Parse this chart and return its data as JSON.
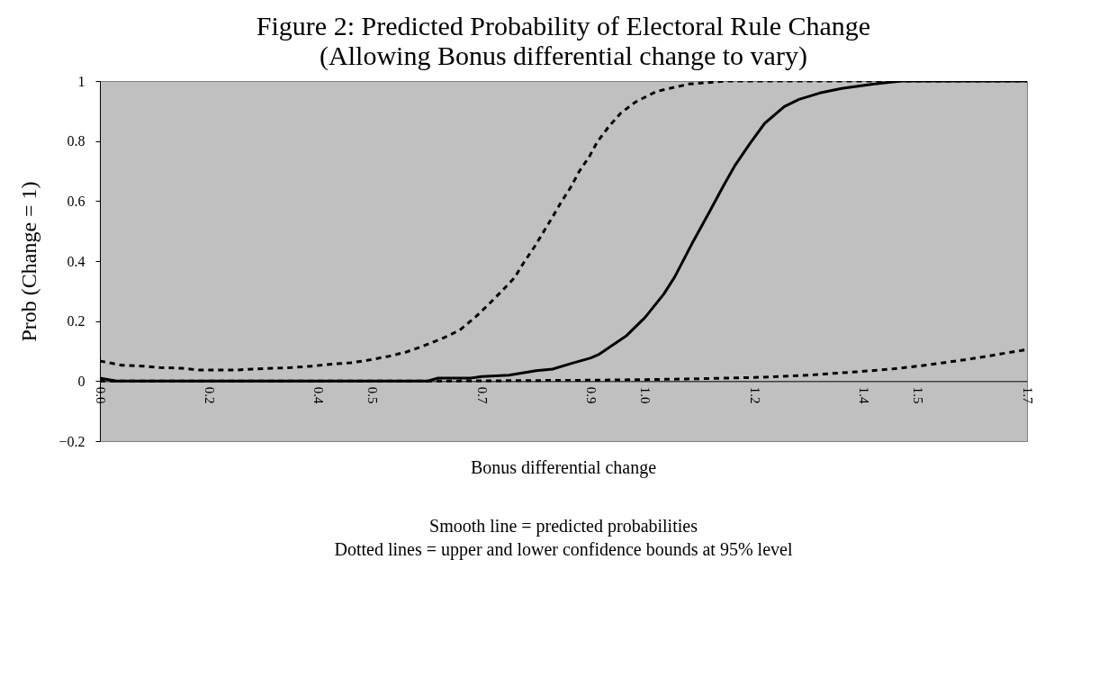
{
  "chart_data": {
    "type": "line",
    "title": "Figure 2: Predicted Probability of Electoral Rule Change",
    "subtitle": "(Allowing Bonus differential change to vary)",
    "xlabel": "Bonus differential change",
    "ylabel": "Prob (Change = 1)",
    "annotations": [
      "Smooth line = predicted probabilities",
      "Dotted lines = upper and lower confidence bounds at 95% level"
    ],
    "xlim": [
      0,
      1.7
    ],
    "ylim": [
      -0.2,
      1
    ],
    "xticks": [
      {
        "value": 0,
        "label": "0.0"
      },
      0.2,
      0.4,
      0.5,
      0.7,
      0.9,
      {
        "value": 1,
        "label": "1.0"
      },
      1.2,
      1.4,
      1.5,
      1.7
    ],
    "yticks": [
      {
        "value": -0.2,
        "label": "−0.2"
      },
      0,
      0.2,
      0.4,
      0.6,
      0.8,
      1
    ],
    "grid": false,
    "legend": false,
    "series": [
      {
        "color": "#000000",
        "line_style": "solid",
        "x": [
          0,
          0.03,
          0.1,
          0.2,
          0.3,
          0.4,
          0.5,
          0.6,
          0.62,
          0.68,
          0.7,
          0.75,
          0.8,
          0.83,
          0.865,
          0.9,
          0.916,
          0.966,
          1.0,
          1.034,
          1.054,
          1.086,
          1.118,
          1.144,
          1.165,
          1.192,
          1.219,
          1.255,
          1.282,
          1.32,
          1.36,
          1.42,
          1.47,
          1.55,
          1.7
        ],
        "values": [
          0.01,
          0,
          0,
          0,
          0,
          0,
          0,
          0,
          0.01,
          0.01,
          0.015,
          0.02,
          0.035,
          0.04,
          0.059,
          0.077,
          0.09,
          0.152,
          0.213,
          0.29,
          0.347,
          0.459,
          0.565,
          0.653,
          0.72,
          0.792,
          0.859,
          0.915,
          0.939,
          0.96,
          0.975,
          0.99,
          1,
          1,
          1
        ]
      },
      {
        "color": "#000000",
        "line_style": "dashed",
        "x": [
          0,
          0.04,
          0.08,
          0.11,
          0.15,
          0.18,
          0.22,
          0.25,
          0.28,
          0.32,
          0.35,
          0.39,
          0.42,
          0.46,
          0.49,
          0.53,
          0.56,
          0.59,
          0.63,
          0.66,
          0.69,
          0.713,
          0.737,
          0.76,
          0.778,
          0.797,
          0.813,
          0.83,
          0.846,
          0.863,
          0.879,
          0.897,
          0.912,
          0.933,
          0.955,
          0.982,
          1.02,
          1.08,
          1.15,
          1.3,
          1.7
        ],
        "values": [
          0.067,
          0.053,
          0.05,
          0.045,
          0.043,
          0.037,
          0.037,
          0.037,
          0.04,
          0.043,
          0.045,
          0.05,
          0.056,
          0.061,
          0.069,
          0.083,
          0.096,
          0.115,
          0.144,
          0.17,
          0.216,
          0.256,
          0.3,
          0.344,
          0.397,
          0.448,
          0.496,
          0.547,
          0.597,
          0.645,
          0.699,
          0.747,
          0.797,
          0.848,
          0.893,
          0.93,
          0.965,
          0.99,
          1,
          1,
          1
        ]
      },
      {
        "color": "#000000",
        "line_style": "dashed",
        "x": [
          0,
          0.2,
          0.4,
          0.6,
          0.8,
          0.9,
          1.0,
          1.1,
          1.2,
          1.3,
          1.38,
          1.45,
          1.5,
          1.55,
          1.6,
          1.65,
          1.7
        ],
        "values": [
          0,
          0,
          0,
          0,
          0.002,
          0.003,
          0.005,
          0.008,
          0.012,
          0.02,
          0.03,
          0.04,
          0.05,
          0.062,
          0.075,
          0.09,
          0.105
        ]
      }
    ]
  }
}
